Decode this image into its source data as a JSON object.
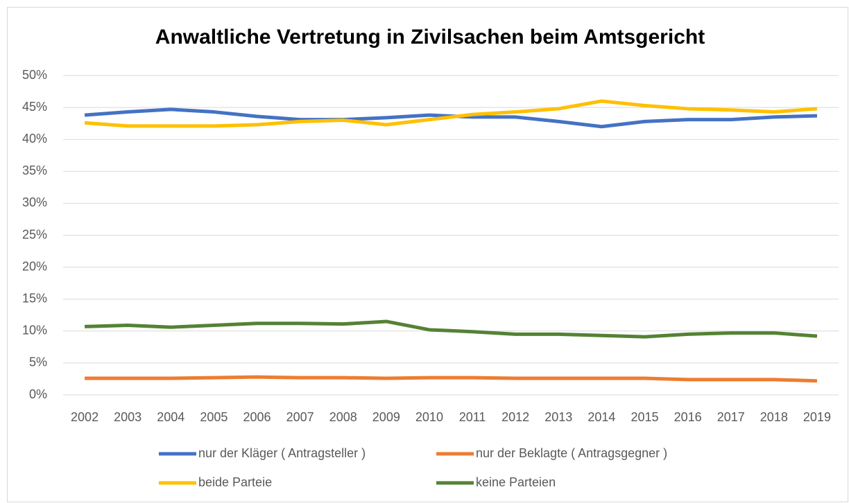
{
  "chart_data": {
    "type": "line",
    "title": "Anwaltliche Vertretung in Zivilsachen beim Amtsgericht",
    "categories": [
      "2002",
      "2003",
      "2004",
      "2005",
      "2006",
      "2007",
      "2008",
      "2009",
      "2010",
      "2011",
      "2012",
      "2013",
      "2014",
      "2015",
      "2016",
      "2017",
      "2018",
      "2019"
    ],
    "series": [
      {
        "name": "nur der Kläger ( Antragsteller )",
        "color": "#4472c4",
        "values": [
          43.8,
          44.3,
          44.7,
          44.3,
          43.6,
          43.1,
          43.1,
          43.4,
          43.8,
          43.5,
          43.5,
          42.8,
          42.0,
          42.8,
          43.1,
          43.1,
          43.5,
          43.7
        ]
      },
      {
        "name": "nur der Beklagte ( Antragsgegner )",
        "color": "#ed7d31",
        "values": [
          2.6,
          2.6,
          2.6,
          2.7,
          2.8,
          2.7,
          2.7,
          2.6,
          2.7,
          2.7,
          2.6,
          2.6,
          2.6,
          2.6,
          2.4,
          2.4,
          2.4,
          2.2
        ]
      },
      {
        "name": "beide Parteie",
        "color": "#ffc000",
        "values": [
          42.6,
          42.1,
          42.1,
          42.1,
          42.3,
          42.8,
          43.0,
          42.3,
          43.1,
          43.9,
          44.3,
          44.8,
          46.0,
          45.3,
          44.8,
          44.6,
          44.3,
          44.8
        ]
      },
      {
        "name": "keine Parteien",
        "color": "#548235",
        "values": [
          10.7,
          10.9,
          10.6,
          10.9,
          11.2,
          11.2,
          11.1,
          11.5,
          10.2,
          9.9,
          9.5,
          9.5,
          9.3,
          9.1,
          9.5,
          9.7,
          9.7,
          9.2
        ]
      }
    ],
    "ylim": [
      0,
      50
    ],
    "yticks": [
      {
        "value": 0,
        "label": "0%"
      },
      {
        "value": 5,
        "label": "5%"
      },
      {
        "value": 10,
        "label": "10%"
      },
      {
        "value": 15,
        "label": "15%"
      },
      {
        "value": 20,
        "label": "20%"
      },
      {
        "value": 25,
        "label": "25%"
      },
      {
        "value": 30,
        "label": "30%"
      },
      {
        "value": 35,
        "label": "35%"
      },
      {
        "value": 40,
        "label": "40%"
      },
      {
        "value": 45,
        "label": "45%"
      },
      {
        "value": 50,
        "label": "50%"
      }
    ],
    "grid": true,
    "legend": "bottom"
  }
}
